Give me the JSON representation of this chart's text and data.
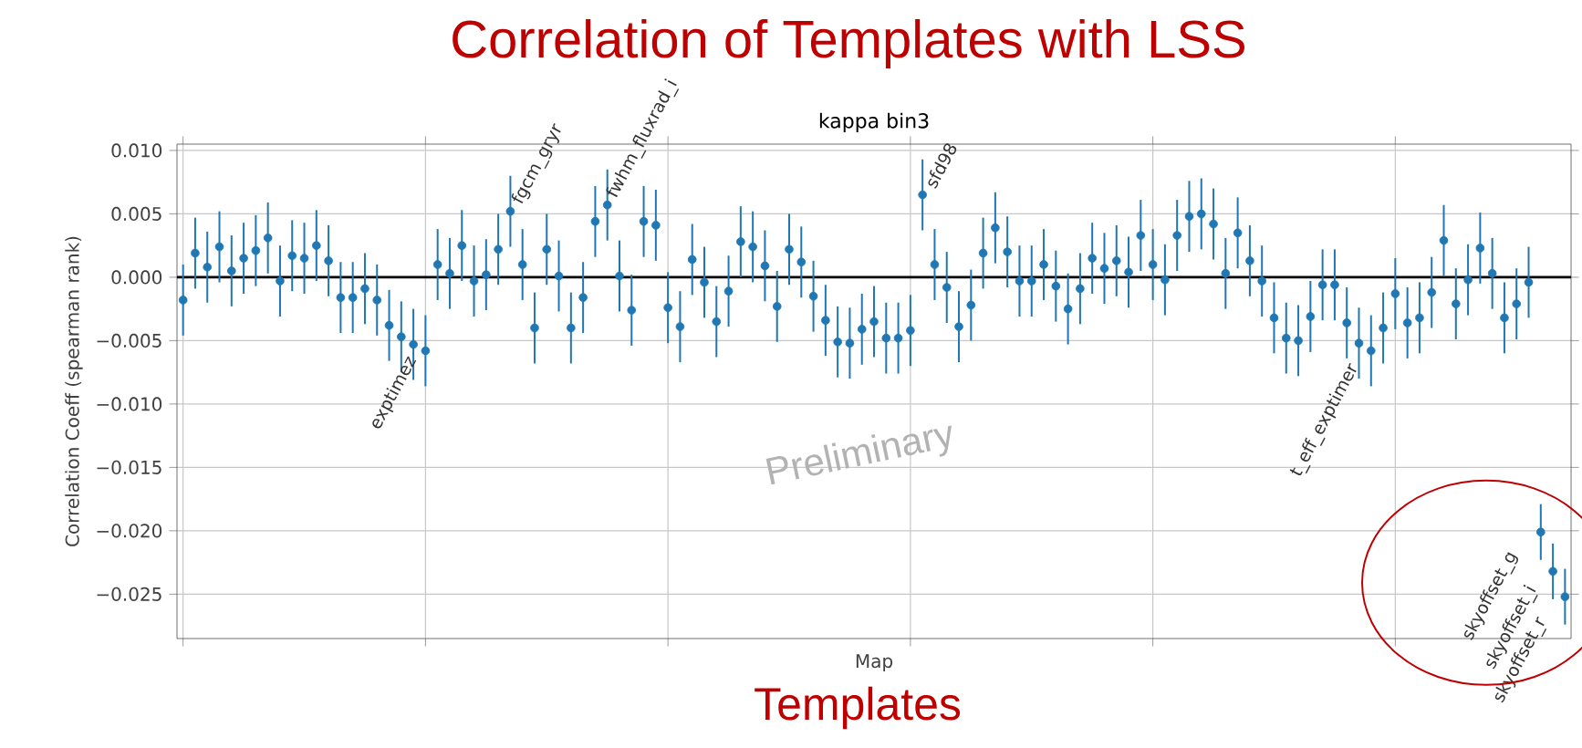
{
  "chart_data": {
    "type": "scatter",
    "title": "Correlation of Templates with LSS",
    "subtitle": "kappa bin3",
    "xlabel": "Map",
    "ylabel": "Correlation Coeff (spearman rank)",
    "categories": [
      null,
      null,
      null,
      null,
      null,
      null,
      null,
      null,
      null,
      null,
      null,
      null,
      null,
      null,
      null,
      null,
      null,
      null,
      null,
      null,
      null,
      null,
      null,
      null,
      null,
      null,
      null,
      null,
      null,
      null,
      null,
      null,
      null,
      null,
      null,
      null,
      null,
      null,
      null,
      null,
      null,
      null,
      null,
      null,
      null,
      null,
      null,
      null,
      null,
      null,
      null,
      null,
      null,
      null,
      null,
      null,
      null,
      null,
      null,
      null,
      null,
      null,
      null,
      null,
      null,
      null,
      null,
      null,
      null,
      null,
      null,
      null,
      null,
      null,
      null,
      null,
      null,
      null,
      null,
      null,
      null,
      null,
      null,
      null,
      null,
      null,
      null,
      null,
      null,
      null,
      null,
      null,
      null,
      null,
      null,
      null,
      null,
      null,
      null,
      null,
      null,
      null,
      null,
      null,
      null,
      null,
      null,
      null,
      null,
      null,
      null,
      null,
      null,
      null,
      null
    ],
    "series": [
      {
        "color": "#1f77b4",
        "values": [
          -0.0018,
          0.0019,
          0.0008,
          0.0024,
          0.0005,
          0.0015,
          0.0021,
          0.0031,
          -0.0003,
          0.0017,
          0.0015,
          0.0025,
          0.0013,
          -0.0016,
          -0.0016,
          -0.0009,
          -0.0018,
          -0.0038,
          -0.0047,
          -0.0053,
          -0.0058,
          0.001,
          0.0003,
          0.0025,
          -0.0003,
          0.0002,
          0.0022,
          0.0052,
          0.001,
          -0.004,
          0.0022,
          0.0001,
          -0.004,
          -0.0016,
          0.0044,
          0.0057,
          0.0001,
          -0.0026,
          0.0044,
          0.0041,
          -0.0024,
          -0.0039,
          0.0014,
          -0.0004,
          -0.0035,
          -0.0011,
          0.0028,
          0.0024,
          0.0009,
          -0.0023,
          0.0022,
          0.0012,
          -0.0015,
          -0.0034,
          -0.0051,
          -0.0052,
          -0.0041,
          -0.0035,
          -0.0048,
          -0.0048,
          -0.0042,
          0.0065,
          0.001,
          -0.0008,
          -0.0039,
          -0.0022,
          0.0019,
          0.0039,
          0.002,
          -0.0003,
          -0.0003,
          0.001,
          -0.0007,
          -0.0025,
          -0.0009,
          0.0015,
          0.0007,
          0.0013,
          0.0004,
          0.0033,
          0.001,
          -0.0002,
          0.0033,
          0.0048,
          0.005,
          0.0042,
          0.0003,
          0.0035,
          0.0013,
          -0.0003,
          -0.0032,
          -0.0048,
          -0.005,
          -0.0031,
          -0.0006,
          -0.0006,
          -0.0036,
          -0.0052,
          -0.0058,
          -0.004,
          -0.0013,
          -0.0036,
          -0.0032,
          -0.0012,
          0.0029,
          -0.0021,
          -0.0002,
          0.0023,
          0.0003,
          -0.0032,
          -0.0021,
          -0.0004,
          -0.0201,
          -0.0232,
          -0.0252
        ],
        "errors": [
          0.0028,
          0.0028,
          0.0028,
          0.0028,
          0.0028,
          0.0028,
          0.0028,
          0.0028,
          0.0028,
          0.0028,
          0.0028,
          0.0028,
          0.0028,
          0.0028,
          0.0028,
          0.0028,
          0.0028,
          0.0028,
          0.0028,
          0.0028,
          0.0028,
          0.0028,
          0.0028,
          0.0028,
          0.0028,
          0.0028,
          0.0028,
          0.0028,
          0.0028,
          0.0028,
          0.0028,
          0.0028,
          0.0028,
          0.0028,
          0.0028,
          0.0028,
          0.0028,
          0.0028,
          0.0028,
          0.0028,
          0.0028,
          0.0028,
          0.0028,
          0.0028,
          0.0028,
          0.0028,
          0.0028,
          0.0028,
          0.0028,
          0.0028,
          0.0028,
          0.0028,
          0.0028,
          0.0028,
          0.0028,
          0.0028,
          0.0028,
          0.0028,
          0.0028,
          0.0028,
          0.0028,
          0.0028,
          0.0028,
          0.0028,
          0.0028,
          0.0028,
          0.0028,
          0.0028,
          0.0028,
          0.0028,
          0.0028,
          0.0028,
          0.0028,
          0.0028,
          0.0028,
          0.0028,
          0.0028,
          0.0028,
          0.0028,
          0.0028,
          0.0028,
          0.0028,
          0.0028,
          0.0028,
          0.0028,
          0.0028,
          0.0028,
          0.0028,
          0.0028,
          0.0028,
          0.0028,
          0.0028,
          0.0028,
          0.0028,
          0.0028,
          0.0028,
          0.0028,
          0.0028,
          0.0028,
          0.0028,
          0.0028,
          0.0028,
          0.0028,
          0.0028,
          0.0028,
          0.0028,
          0.0028,
          0.0028,
          0.0028,
          0.0028,
          0.0028,
          0.0028,
          0.0022,
          0.0022,
          0.0022
        ]
      }
    ],
    "ylim": [
      -0.0285,
      0.0105
    ],
    "yticks": [
      {
        "value": 0.01,
        "label": "0.010"
      },
      {
        "value": 0.005,
        "label": "0.005"
      },
      {
        "value": 0.0,
        "label": "0.000"
      },
      {
        "value": -0.005,
        "label": "−0.005"
      },
      {
        "value": -0.01,
        "label": "−0.010"
      },
      {
        "value": -0.015,
        "label": "−0.015"
      },
      {
        "value": -0.02,
        "label": "−0.020"
      },
      {
        "value": -0.025,
        "label": "−0.025"
      }
    ],
    "grid": true,
    "marker": "circle",
    "ref_lines": [
      {
        "axis": "y",
        "value": 0,
        "color": "#000000"
      }
    ],
    "annotations": [
      "exptimez",
      "fgcm_gryr",
      "fwhm_fluxrad_i",
      "sfd98",
      "t_eff_exptimer",
      "skyoffset_g",
      "skyoffset_i",
      "skyoffset_r",
      "Preliminary",
      "Templates"
    ]
  }
}
